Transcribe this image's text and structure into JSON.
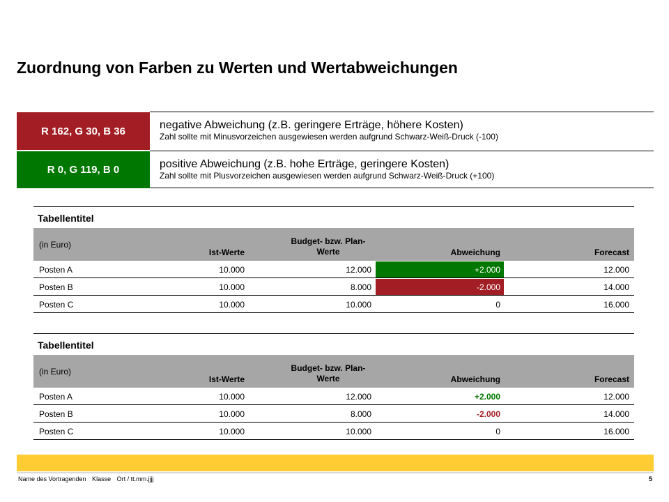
{
  "title": "Zuordnung von Farben zu Werten und Wertabweichungen",
  "colors": {
    "red": "#a21e24",
    "green": "#007700",
    "header_gray": "#a6a6a6",
    "footer_yellow": "#ffcc33"
  },
  "legend": [
    {
      "swatch": "R 162, G 30, B 36",
      "main": "negative Abweichung (z.B. geringere Erträge, höhere Kosten)",
      "sub": "Zahl sollte mit Minusvorzeichen ausgewiesen werden aufgrund Schwarz-Weiß-Druck (-100)"
    },
    {
      "swatch": "R 0, G 119, B 0",
      "main": "positive Abweichung (z.B. hohe Erträge, geringere Kosten)",
      "sub": "Zahl sollte mit Plusvorzeichen ausgewiesen werden aufgrund Schwarz-Weiß-Druck (+100)"
    }
  ],
  "table1": {
    "title": "Tabellentitel",
    "headers": [
      "(in Euro)",
      "Ist-Werte",
      "Budget- bzw. Plan-Werte",
      "Abweichung",
      "Forecast"
    ],
    "rows": [
      [
        "Posten A",
        "10.000",
        "12.000",
        "+2.000",
        "12.000"
      ],
      [
        "Posten B",
        "10.000",
        "8.000",
        "-2.000",
        "14.000"
      ],
      [
        "Posten C",
        "10.000",
        "10.000",
        "0",
        "16.000"
      ]
    ]
  },
  "table2": {
    "title": "Tabellentitel",
    "headers": [
      "(in Euro)",
      "Ist-Werte",
      "Budget- bzw. Plan-Werte",
      "Abweichung",
      "Forecast"
    ],
    "rows": [
      [
        "Posten A",
        "10.000",
        "12.000",
        "+2.000",
        "12.000"
      ],
      [
        "Posten B",
        "10.000",
        "8.000",
        "-2.000",
        "14.000"
      ],
      [
        "Posten C",
        "10.000",
        "10.000",
        "0",
        "16.000"
      ]
    ]
  },
  "footer": {
    "presenter": "Name des Vortragenden",
    "klasse": "Klasse",
    "ort_datum": "Ort / tt.mm.jjjj",
    "page": "5"
  }
}
